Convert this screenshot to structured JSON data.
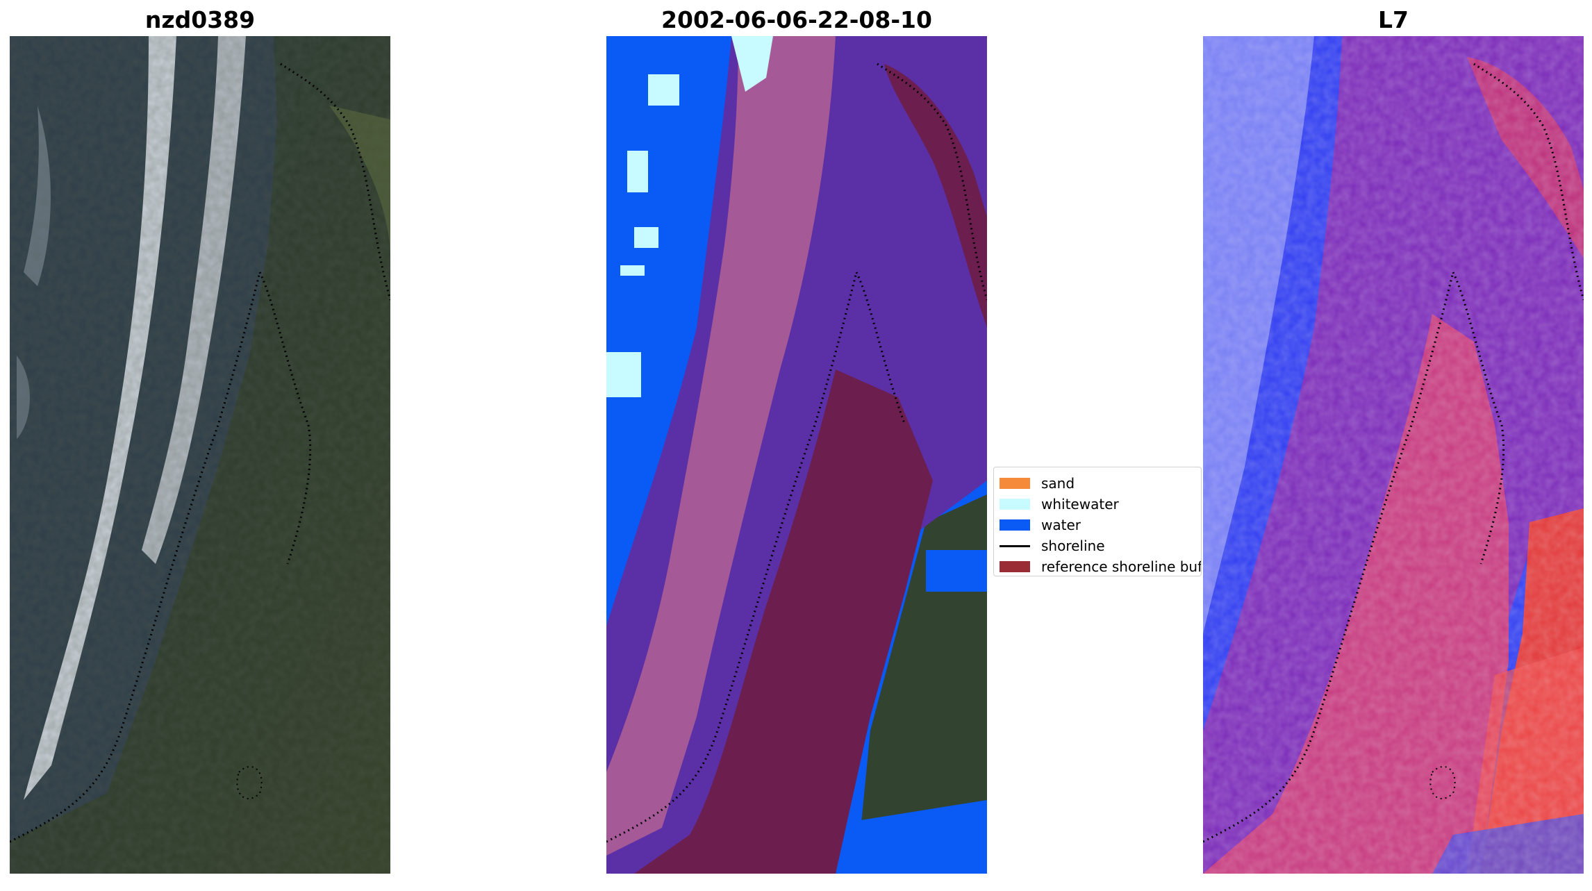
{
  "panels": {
    "rgb": {
      "title": "nzd0389"
    },
    "classified": {
      "title": "2002-06-06-22-08-10"
    },
    "index": {
      "title": "L7"
    }
  },
  "legend": {
    "items": [
      {
        "label": "sand",
        "color": "#f58a3a",
        "kind": "patch"
      },
      {
        "label": "whitewater",
        "color": "#c8fbff",
        "kind": "patch"
      },
      {
        "label": "water",
        "color": "#0a5af5",
        "kind": "patch"
      },
      {
        "label": "shoreline",
        "color": "#000000",
        "kind": "line"
      },
      {
        "label": "reference shoreline buffer",
        "color": "#9a2c35",
        "kind": "patch"
      }
    ]
  }
}
